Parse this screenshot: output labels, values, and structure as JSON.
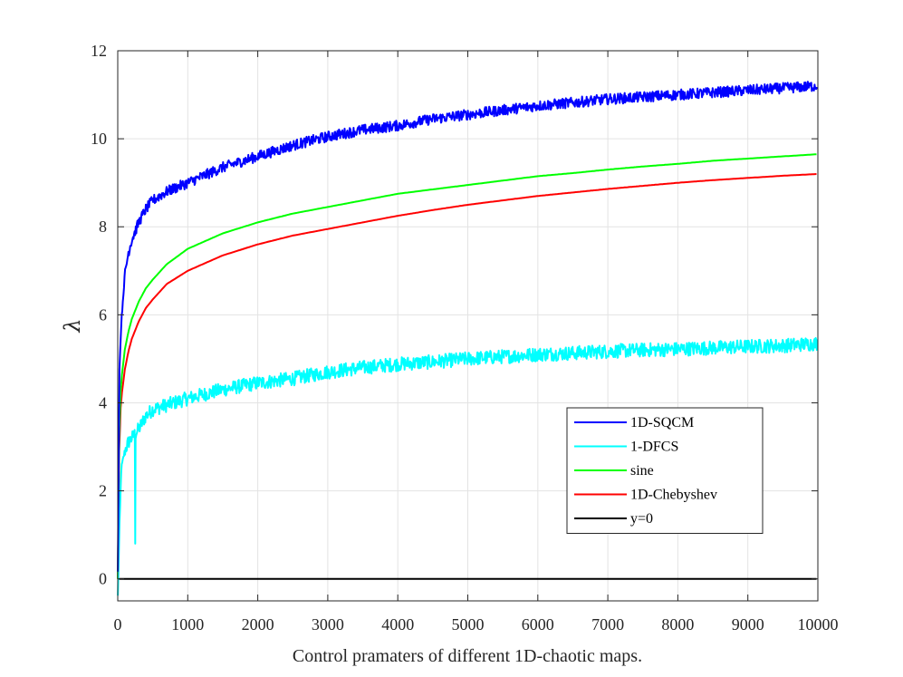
{
  "chart_data": {
    "type": "line",
    "title": "",
    "xlabel": "Control pramaters of different 1D-chaotic maps.",
    "ylabel": "λ",
    "xlim": [
      0,
      10000
    ],
    "ylim": [
      -0.5,
      12
    ],
    "x_ticks": [
      "0",
      "1000",
      "2000",
      "3000",
      "4000",
      "5000",
      "6000",
      "7000",
      "8000",
      "9000",
      "10000"
    ],
    "y_ticks": [
      "0",
      "2",
      "4",
      "6",
      "8",
      "10",
      "12"
    ],
    "grid": true,
    "legend_position": "lower-right",
    "x": [
      1,
      25,
      50,
      100,
      150,
      200,
      250,
      300,
      400,
      500,
      700,
      1000,
      1500,
      2000,
      2500,
      3000,
      3500,
      4000,
      4500,
      5000,
      5500,
      6000,
      6500,
      7000,
      7500,
      8000,
      8500,
      9000,
      9500,
      10000
    ],
    "series": [
      {
        "name": "1D-SQCM",
        "color": "#0000ff",
        "values": [
          0.2,
          4.8,
          5.8,
          6.9,
          7.4,
          7.7,
          7.9,
          8.1,
          8.4,
          8.6,
          8.8,
          9.0,
          9.35,
          9.6,
          9.85,
          10.05,
          10.2,
          10.3,
          10.45,
          10.55,
          10.65,
          10.75,
          10.82,
          10.9,
          10.95,
          11.0,
          11.05,
          11.1,
          11.15,
          11.2
        ]
      },
      {
        "name": "1-DFCS",
        "color": "#00ffff",
        "values": [
          -0.4,
          1.2,
          2.5,
          2.9,
          3.1,
          3.2,
          3.3,
          3.4,
          3.7,
          3.85,
          3.95,
          4.1,
          4.3,
          4.45,
          4.55,
          4.7,
          4.8,
          4.88,
          4.93,
          5.0,
          5.05,
          5.1,
          5.13,
          5.17,
          5.2,
          5.22,
          5.25,
          5.28,
          5.3,
          5.35
        ]
      },
      {
        "name": "sine",
        "color": "#00ff00",
        "values": [
          0.0,
          3.9,
          4.5,
          5.2,
          5.6,
          5.9,
          6.1,
          6.3,
          6.6,
          6.8,
          7.15,
          7.5,
          7.85,
          8.1,
          8.3,
          8.45,
          8.6,
          8.75,
          8.85,
          8.95,
          9.05,
          9.15,
          9.22,
          9.3,
          9.37,
          9.43,
          9.5,
          9.55,
          9.6,
          9.65
        ]
      },
      {
        "name": "1D-Chebyshev",
        "color": "#ff0000",
        "values": [
          0.0,
          3.5,
          4.1,
          4.75,
          5.15,
          5.45,
          5.65,
          5.85,
          6.15,
          6.35,
          6.7,
          7.0,
          7.35,
          7.6,
          7.8,
          7.95,
          8.1,
          8.25,
          8.38,
          8.5,
          8.6,
          8.7,
          8.78,
          8.86,
          8.93,
          9.0,
          9.06,
          9.11,
          9.16,
          9.2
        ]
      },
      {
        "name": "y=0",
        "color": "#000000",
        "values": [
          0,
          0,
          0,
          0,
          0,
          0,
          0,
          0,
          0,
          0,
          0,
          0,
          0,
          0,
          0,
          0,
          0,
          0,
          0,
          0,
          0,
          0,
          0,
          0,
          0,
          0,
          0,
          0,
          0,
          0
        ]
      }
    ],
    "annotations": {
      "dfcs_dip": {
        "x": 250,
        "y": 0.8
      }
    }
  }
}
